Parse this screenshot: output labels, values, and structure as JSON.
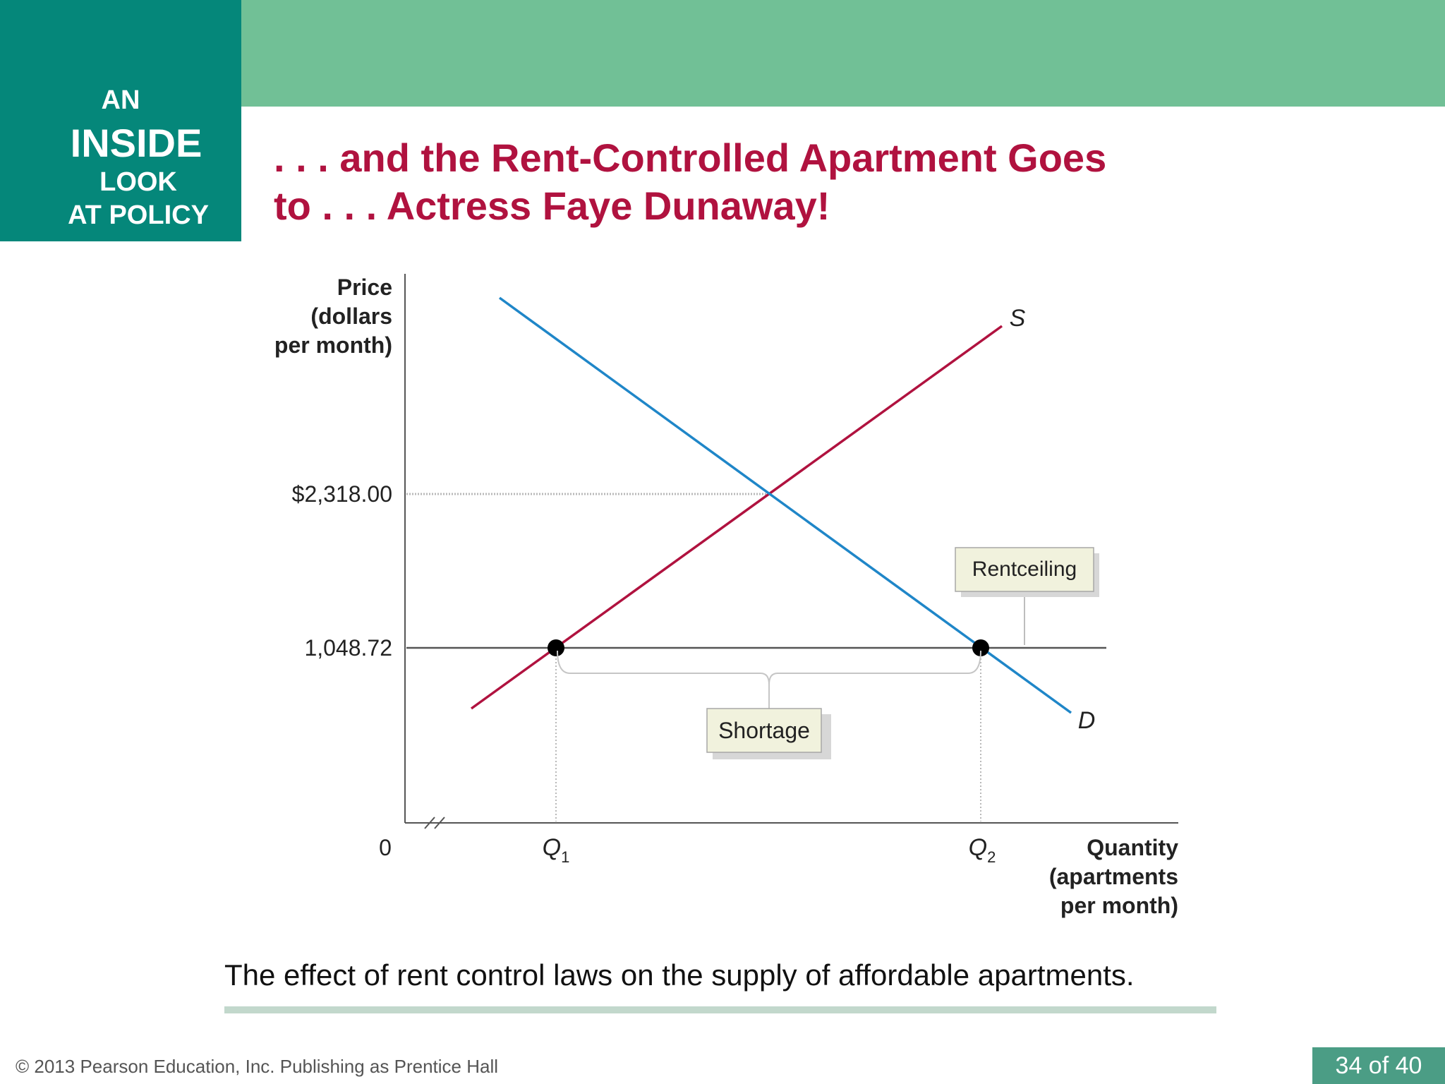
{
  "badge": {
    "line1": "AN",
    "line2": "INSIDE",
    "line3": "LOOK",
    "line4": "AT POLICY"
  },
  "title": {
    "line1": ". . . and the Rent-Controlled Apartment Goes",
    "line2": "to . . . Actress Faye Dunaway!"
  },
  "chart_data": {
    "type": "line",
    "ylabel": [
      "Price",
      "(dollars",
      "per month)"
    ],
    "xlabel": [
      "Quantity",
      "(apartments",
      "per month)"
    ],
    "origin_label": "0",
    "y_ticks": [
      "$2,318.00",
      "1,048.72"
    ],
    "x_ticks": [
      "Q1",
      "Q2"
    ],
    "series": [
      {
        "name": "S",
        "color": "#b0123f"
      },
      {
        "name": "D",
        "color": "#1f86c8"
      }
    ],
    "equilibrium_price": 2318.0,
    "rent_ceiling_price": 1048.72,
    "annotations": {
      "ceiling": "Rentceiling",
      "shortage": "Shortage"
    }
  },
  "caption": "The effect of rent control laws on the supply of affordable apartments.",
  "footer": "© 2013 Pearson Education, Inc. Publishing as Prentice Hall",
  "pager": "34 of 40",
  "colors": {
    "accent_red": "#b0123f",
    "teal": "#05877a",
    "green_band": "#71c096",
    "demand_blue": "#1f86c8"
  }
}
